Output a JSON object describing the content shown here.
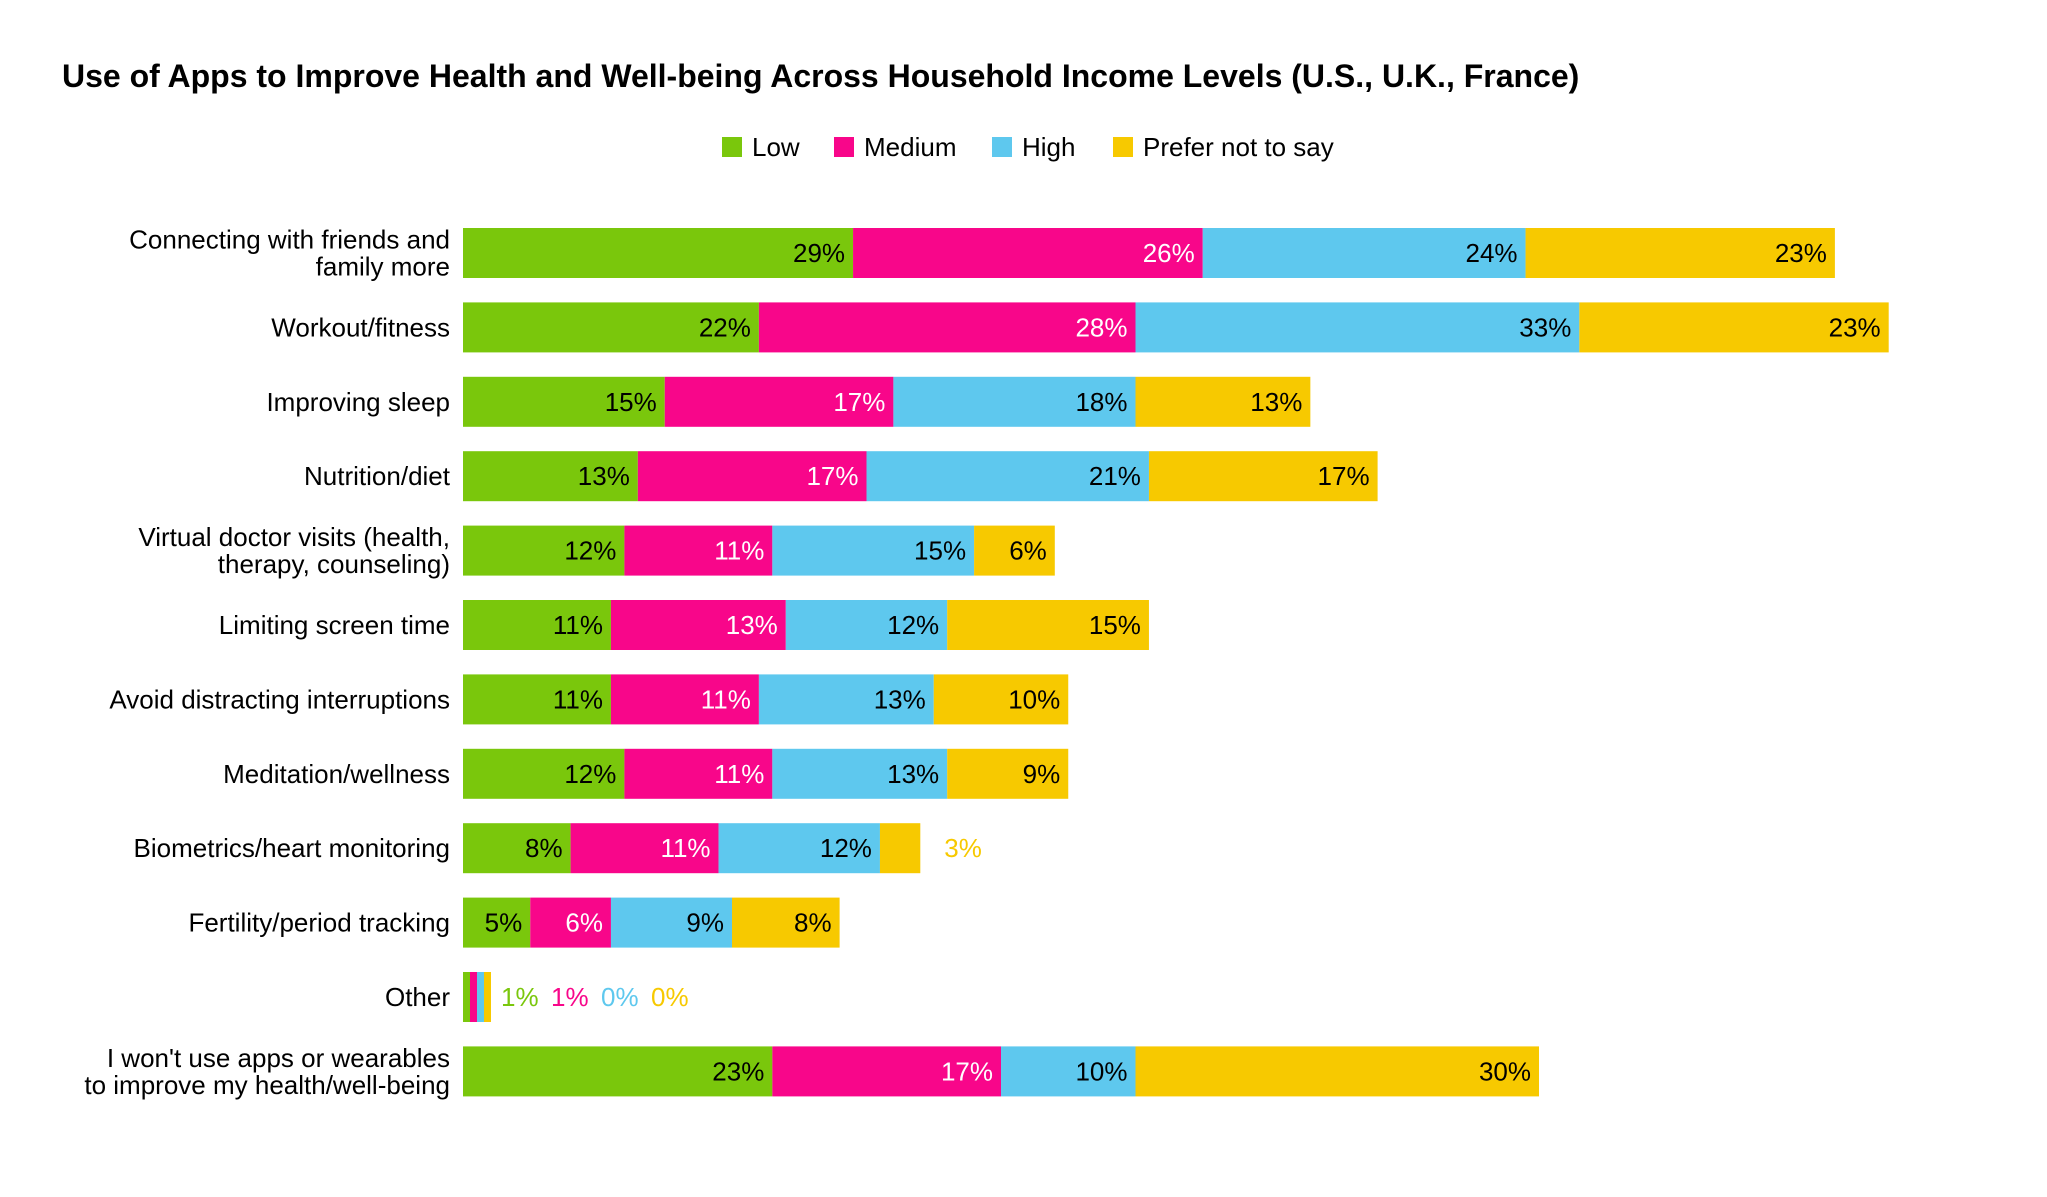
{
  "chart_data": {
    "type": "bar",
    "orientation": "horizontal",
    "stacked": true,
    "title": "Use of Apps to Improve Health and Well-being Across Household Income Levels (U.S., U.K., France)",
    "legend_position": "top",
    "grid": false,
    "categories": [
      [
        "Connecting with friends and",
        "family more"
      ],
      [
        "Workout/fitness"
      ],
      [
        "Improving sleep"
      ],
      [
        "Nutrition/diet"
      ],
      [
        "Virtual doctor visits (health,",
        "therapy, counseling)"
      ],
      [
        "Limiting screen time"
      ],
      [
        "Avoid distracting interruptions"
      ],
      [
        "Meditation/wellness"
      ],
      [
        "Biometrics/heart monitoring"
      ],
      [
        "Fertility/period tracking"
      ],
      [
        "Other"
      ],
      [
        "I won't use apps or wearables",
        "to improve my health/well-being"
      ]
    ],
    "series": [
      {
        "name": "Low",
        "color": "#7ac70c",
        "label_color": "#000000",
        "values": [
          29,
          22,
          15,
          13,
          12,
          11,
          11,
          12,
          8,
          5,
          1,
          23
        ]
      },
      {
        "name": "Medium",
        "color": "#f8068a",
        "label_color": "#ffffff",
        "values": [
          26,
          28,
          17,
          17,
          11,
          13,
          11,
          11,
          11,
          6,
          1,
          17
        ]
      },
      {
        "name": "High",
        "color": "#5ec8ee",
        "label_color": "#000000",
        "values": [
          24,
          33,
          18,
          21,
          15,
          12,
          13,
          13,
          12,
          9,
          0,
          10
        ]
      },
      {
        "name": "Prefer not to say",
        "color": "#f7c900",
        "label_color": "#000000",
        "values": [
          23,
          23,
          13,
          17,
          6,
          15,
          10,
          9,
          3,
          8,
          0,
          30
        ]
      }
    ],
    "value_suffix": "%",
    "xlim": [
      0,
      106
    ]
  }
}
